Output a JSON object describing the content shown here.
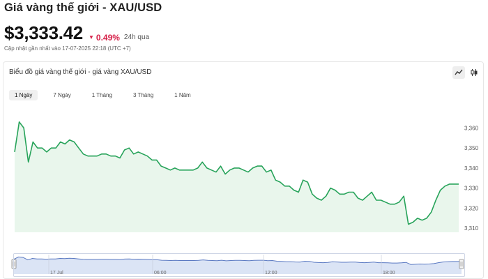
{
  "header": {
    "title": "Giá vàng thế giới - XAU/USD",
    "price": "$3,333.42",
    "change": "0.49%",
    "period": "24h qua",
    "updated": "Cập nhật gần nhất vào 17-07-2025 22:18 (UTC +7)"
  },
  "card": {
    "title": "Biểu đồ giá vàng thế giới - giá vàng XAU/USD",
    "tools": [
      "line-chart-icon",
      "candlestick-icon"
    ]
  },
  "tabs": [
    {
      "label": "1 Ngày",
      "active": true
    },
    {
      "label": "7 Ngày",
      "active": false
    },
    {
      "label": "1 Tháng",
      "active": false
    },
    {
      "label": "3 Tháng",
      "active": false
    },
    {
      "label": "1 Năm",
      "active": false
    }
  ],
  "colors": {
    "line": "#27a35a",
    "area": "#e9f6ec",
    "negative": "#d6224a",
    "navigator_fill": "#dbe4f5",
    "navigator_line": "#5a79c2"
  },
  "chart_data": {
    "type": "area",
    "ylim": [
      3308,
      3365
    ],
    "yticks": [
      3310,
      3320,
      3330,
      3340,
      3350,
      3360
    ],
    "ytick_labels": [
      "3,310",
      "3,320",
      "3,330",
      "3,340",
      "3,350",
      "3,360"
    ],
    "values": [
      3348,
      3363,
      3360,
      3343,
      3353,
      3350,
      3350,
      3348,
      3350,
      3350,
      3353,
      3352,
      3354,
      3353,
      3350,
      3347,
      3346,
      3346,
      3346,
      3347,
      3347,
      3346,
      3346,
      3345,
      3349,
      3350,
      3347,
      3348,
      3347,
      3346,
      3344,
      3344,
      3341,
      3340,
      3339,
      3340,
      3339,
      3339,
      3339,
      3339,
      3340,
      3343,
      3340,
      3339,
      3338,
      3341,
      3337,
      3339,
      3340,
      3340,
      3339,
      3338,
      3340,
      3341,
      3341,
      3338,
      3339,
      3334,
      3333,
      3331,
      3331,
      3329,
      3328,
      3334,
      3333,
      3327,
      3325,
      3324,
      3326,
      3330,
      3329,
      3327,
      3327,
      3328,
      3328,
      3325,
      3324,
      3326,
      3328,
      3324,
      3324,
      3323,
      3322,
      3322,
      3323,
      3326,
      3312,
      3313,
      3315,
      3314,
      3315,
      3318,
      3324,
      3329,
      3331,
      3332,
      3332,
      3332
    ],
    "navigator": {
      "xtick_labels": [
        "17 Jul",
        "06:00",
        "12:00",
        "18:00"
      ]
    }
  }
}
